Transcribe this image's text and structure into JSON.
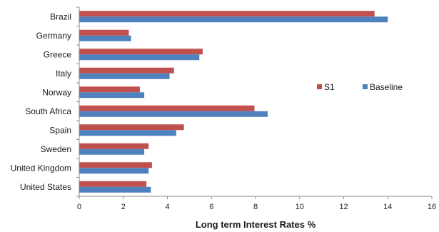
{
  "chart_data": {
    "type": "bar",
    "orientation": "horizontal",
    "categories": [
      "Brazil",
      "Germany",
      "Greece",
      "Italy",
      "Norway",
      "South Africa",
      "Spain",
      "Sweden",
      "United Kingdom",
      "United States"
    ],
    "series": [
      {
        "name": "S1",
        "color": "#c0504d",
        "values": [
          13.4,
          2.25,
          5.6,
          4.3,
          2.75,
          7.95,
          4.75,
          3.15,
          3.3,
          3.05
        ]
      },
      {
        "name": "Baseline",
        "color": "#4f81bd",
        "values": [
          14.0,
          2.35,
          5.45,
          4.1,
          2.95,
          8.55,
          4.4,
          2.95,
          3.15,
          3.25
        ]
      }
    ],
    "xlabel": "Long term Interest Rates %",
    "ylabel": "",
    "xlim": [
      0,
      16
    ],
    "xticks": [
      "0",
      "2",
      "4",
      "6",
      "8",
      "10",
      "12",
      "14",
      "16"
    ],
    "grid": false,
    "legend_placement": "right"
  }
}
